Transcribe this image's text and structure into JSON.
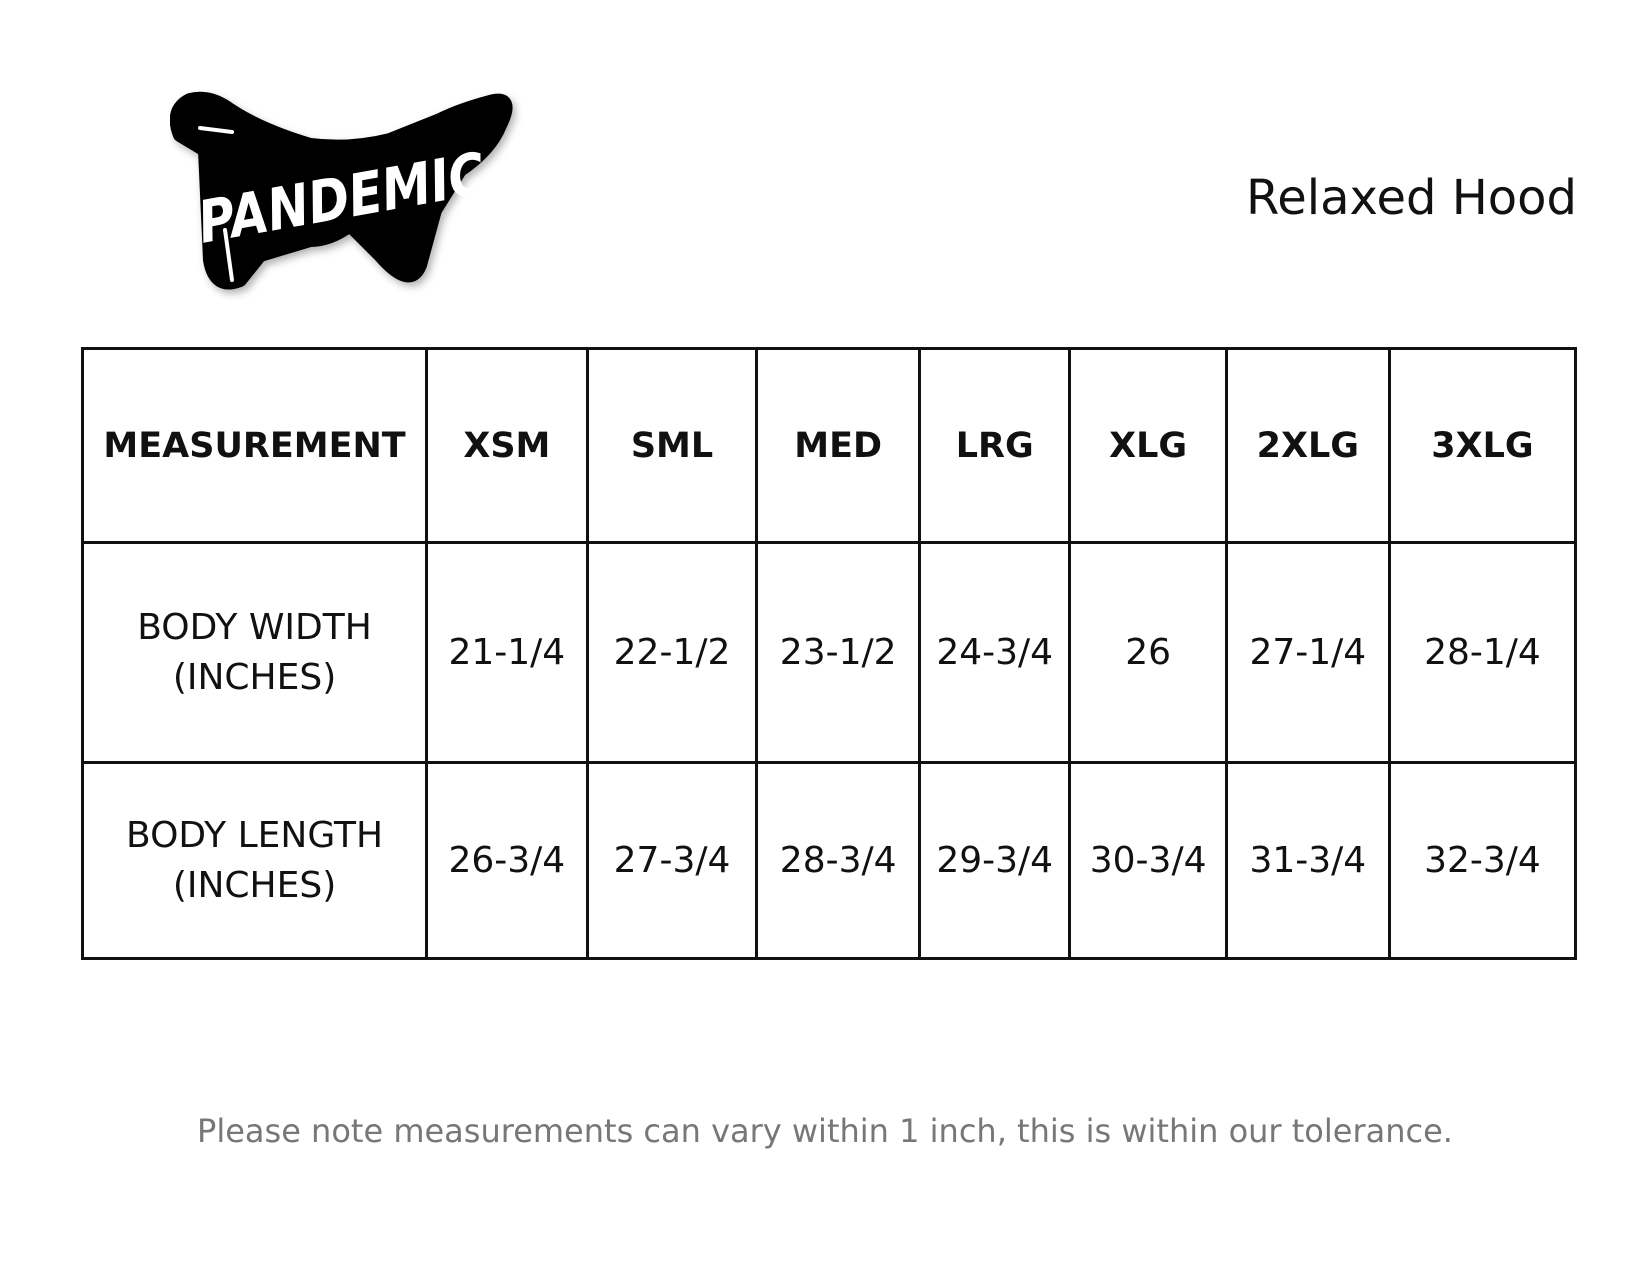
{
  "logo": {
    "text": "PANDEMIC"
  },
  "title": "Relaxed Hood",
  "table": {
    "headers": [
      "MEASUREMENT",
      "XSM",
      "SML",
      "MED",
      "LRG",
      "XLG",
      "2XLG",
      "3XLG"
    ],
    "rows": [
      {
        "label_line1": "BODY WIDTH",
        "label_line2": "(INCHES)",
        "values": [
          "21-1/4",
          "22-1/2",
          "23-1/2",
          "24-3/4",
          "26",
          "27-1/4",
          "28-1/4"
        ]
      },
      {
        "label_line1": "BODY LENGTH",
        "label_line2": "(INCHES)",
        "values": [
          "26-3/4",
          "27-3/4",
          "28-3/4",
          "29-3/4",
          "30-3/4",
          "31-3/4",
          "32-3/4"
        ]
      }
    ]
  },
  "note": "Please note measurements can vary within 1 inch, this is within our tolerance."
}
